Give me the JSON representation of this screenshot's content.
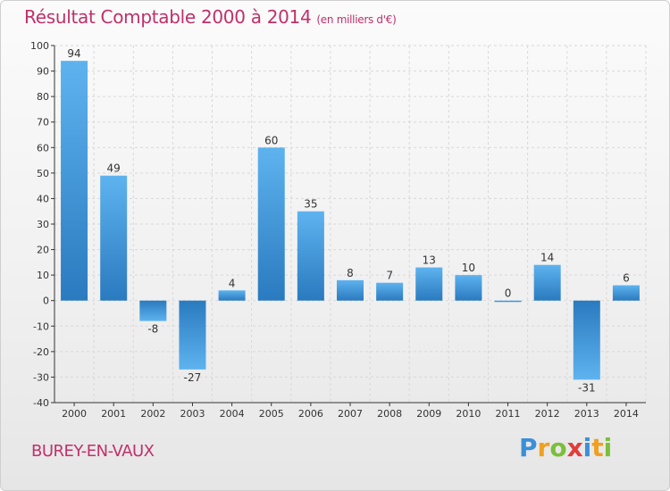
{
  "title": "Résultat Comptable 2000 à 2014",
  "subtitle": "(en milliers d'€)",
  "commune": "BUREY-EN-VAUX",
  "brand": {
    "letters": [
      {
        "ch": "P",
        "color": "#3a8fd8"
      },
      {
        "ch": "r",
        "color": "#f0a020"
      },
      {
        "ch": "o",
        "color": "#7bbf3a"
      },
      {
        "ch": "x",
        "color": "#e23c3c"
      },
      {
        "ch": "i",
        "color": "#3a8fd8"
      },
      {
        "ch": "t",
        "color": "#f0a020"
      },
      {
        "ch": "i",
        "color": "#7bbf3a"
      }
    ]
  },
  "colors": {
    "title": "#c0306a",
    "bar_light": "#5eb3ef",
    "bar_dark": "#2a7abf",
    "grid": "#d8d8d8",
    "axis": "#333333"
  },
  "chart_data": {
    "type": "bar",
    "title": "Résultat Comptable 2000 à 2014",
    "xlabel": "",
    "ylabel": "",
    "ylim": [
      -40,
      100
    ],
    "yticks": [
      -40,
      -30,
      -20,
      -10,
      0,
      10,
      20,
      30,
      40,
      50,
      60,
      70,
      80,
      90,
      100
    ],
    "grid": true,
    "categories": [
      "2000",
      "2001",
      "2002",
      "2003",
      "2004",
      "2005",
      "2006",
      "2007",
      "2008",
      "2009",
      "2010",
      "2011",
      "2012",
      "2013",
      "2014"
    ],
    "values": [
      94,
      49,
      -8,
      -27,
      4,
      60,
      35,
      8,
      7,
      13,
      10,
      0,
      14,
      -31,
      6
    ]
  }
}
